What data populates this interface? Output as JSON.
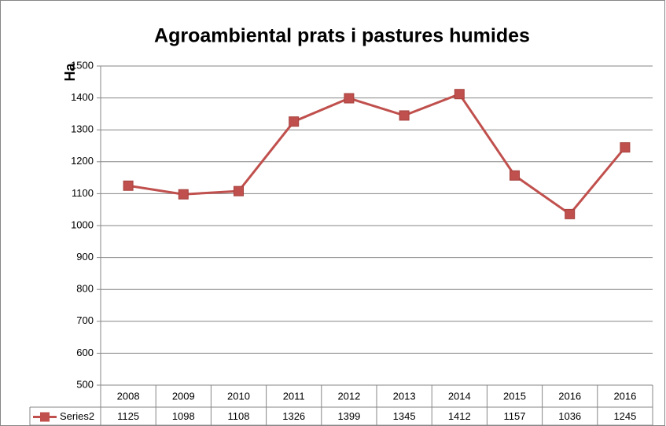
{
  "chart_data": {
    "type": "line",
    "title": "Agroambiental prats i pastures humides",
    "y_label": "Ha",
    "categories": [
      "2008",
      "2009",
      "2010",
      "2011",
      "2012",
      "2013",
      "2014",
      "2015",
      "2016",
      "2016"
    ],
    "series": [
      {
        "name": "Series2",
        "color": "#c0504d",
        "values": [
          1125,
          1098,
          1108,
          1326,
          1399,
          1345,
          1412,
          1157,
          1036,
          1245
        ]
      }
    ],
    "ylim": [
      500,
      1500
    ],
    "yticks": [
      500,
      600,
      700,
      800,
      900,
      1000,
      1100,
      1200,
      1300,
      1400,
      1500
    ],
    "grid": true,
    "data_table": true
  }
}
